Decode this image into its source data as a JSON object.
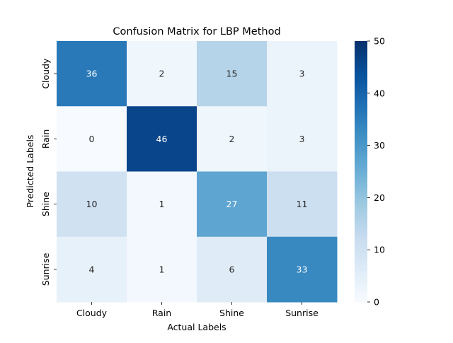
{
  "chart_data": {
    "type": "heatmap",
    "title": "Confusion Matrix for LBP Method",
    "xlabel": "Actual Labels",
    "ylabel": "Predicted Labels",
    "x_categories": [
      "Cloudy",
      "Rain",
      "Shine",
      "Sunrise"
    ],
    "y_categories": [
      "Cloudy",
      "Rain",
      "Shine",
      "Sunrise"
    ],
    "values": [
      [
        36,
        2,
        15,
        3
      ],
      [
        0,
        46,
        2,
        3
      ],
      [
        10,
        1,
        27,
        11
      ],
      [
        4,
        1,
        6,
        33
      ]
    ],
    "colorscale": "Blues",
    "vmin": 0,
    "vmax": 50,
    "colorbar_ticks": [
      0,
      10,
      20,
      30,
      40,
      50
    ]
  }
}
